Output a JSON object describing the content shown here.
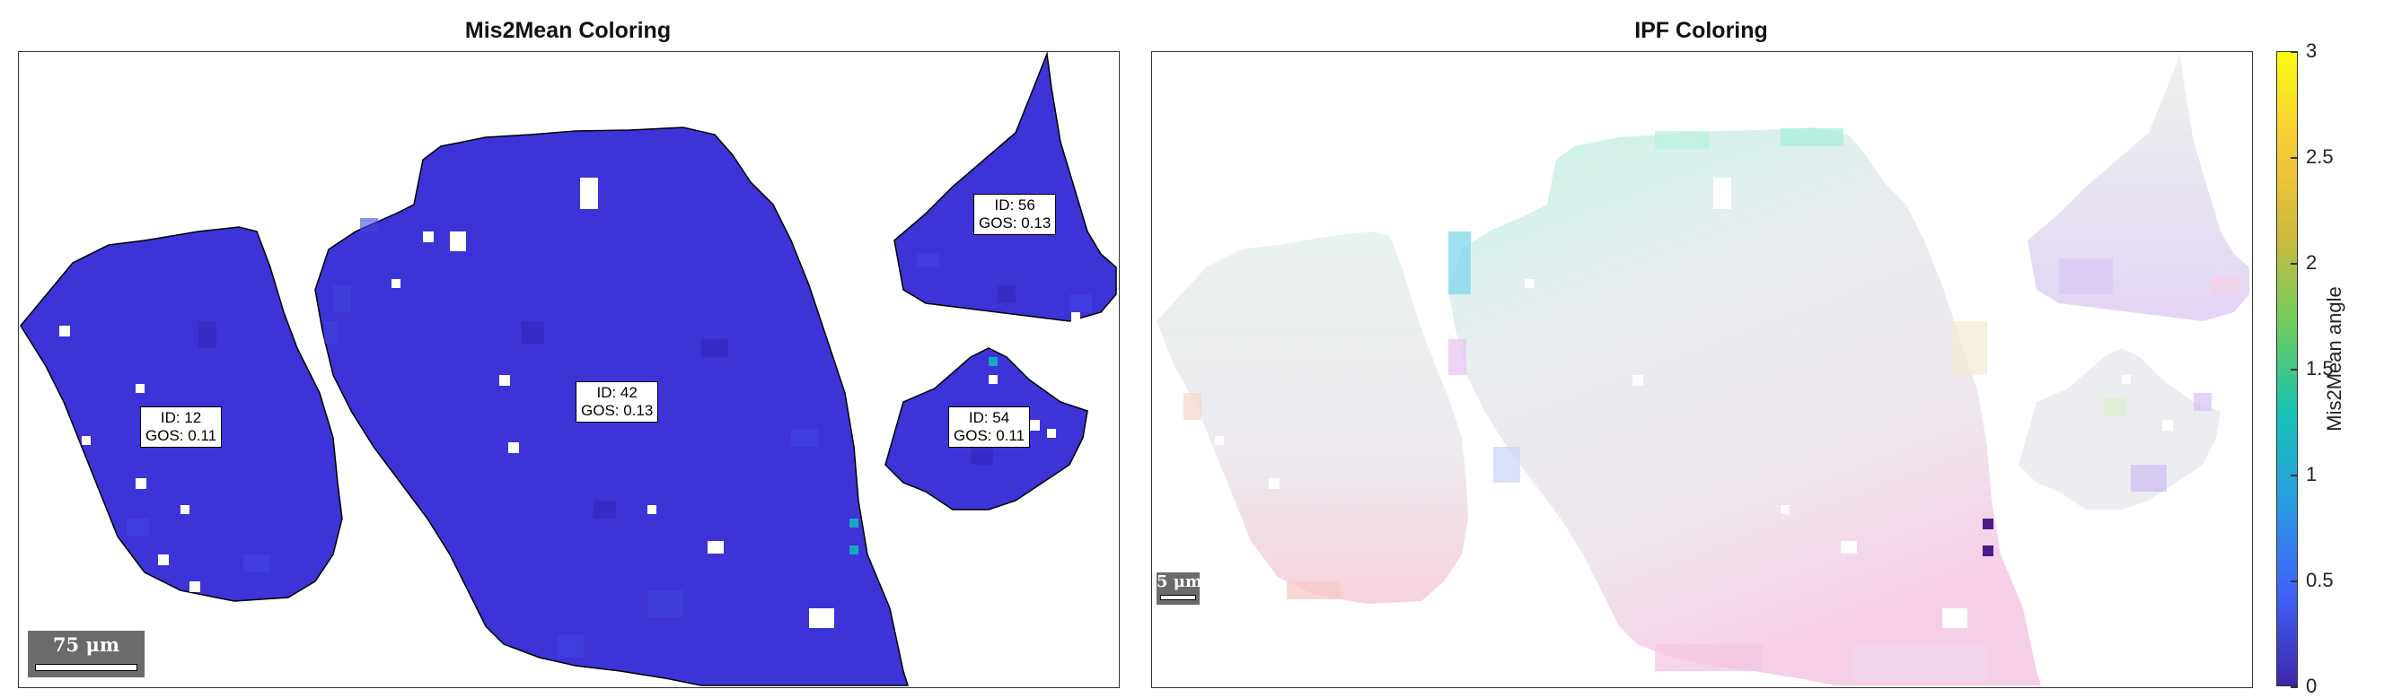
{
  "chart_data": [
    {
      "type": "heatmap",
      "title": "Mis2Mean Coloring",
      "colormap": "parula",
      "grains": [
        {
          "id": "12",
          "gos": "0.11",
          "label": [
            "ID: 12",
            "GOS: 0.11"
          ]
        },
        {
          "id": "42",
          "gos": "0.13",
          "label": [
            "ID: 42",
            "GOS: 0.13"
          ]
        },
        {
          "id": "56",
          "gos": "0.13",
          "label": [
            "ID: 56",
            "GOS: 0.13"
          ]
        },
        {
          "id": "54",
          "gos": "0.11",
          "label": [
            "ID: 54",
            "GOS: 0.11"
          ]
        }
      ],
      "scalebar": "75 μm",
      "colors": {
        "low": "#3d2fd3",
        "mid": "#3f3bdc",
        "high_outlier": "#18a8c6"
      }
    },
    {
      "type": "heatmap",
      "title": "IPF Coloring",
      "scalebar": "5 μm",
      "colors": {
        "base": "#e9eeee",
        "pink": "#f4cfe0",
        "cyan": "#b9f0e4",
        "violet": "#d9c9f4",
        "outlier": "#4b1a8c"
      }
    }
  ],
  "colorbar": {
    "label": "Mis2Mean angle",
    "ticks": [
      "0",
      "0.5",
      "1",
      "1.5",
      "2",
      "2.5",
      "3"
    ],
    "tick_values": [
      0,
      0.5,
      1,
      1.5,
      2,
      2.5,
      3
    ],
    "range": [
      0,
      3
    ],
    "stops": [
      "#3e26a8",
      "#4060f8",
      "#2a9ce2",
      "#16c2b4",
      "#6fcd5f",
      "#d0ba3a",
      "#f8cc39",
      "#f9fb0e"
    ]
  }
}
